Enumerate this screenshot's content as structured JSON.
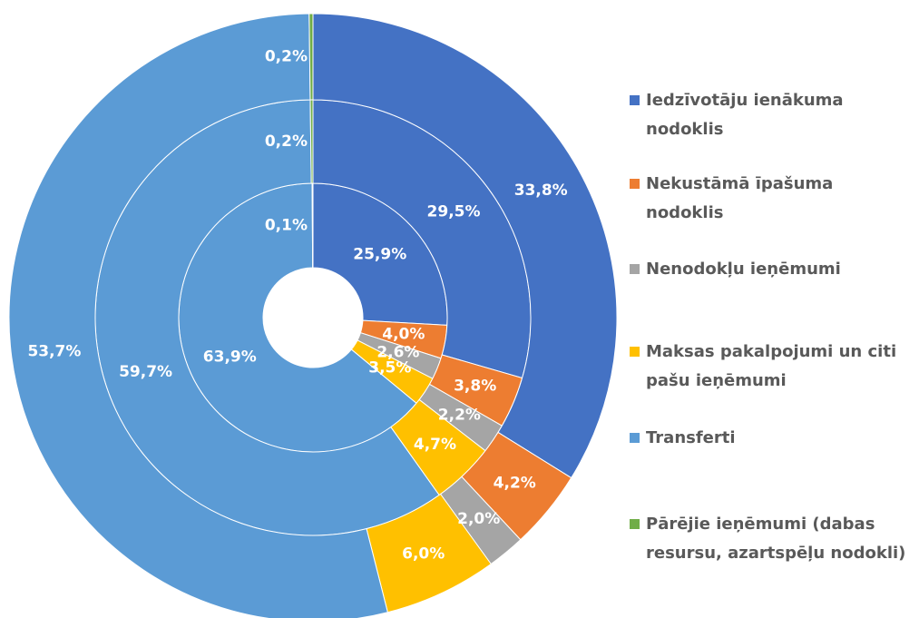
{
  "chart_data": {
    "type": "multi-ring-donut",
    "categories": [
      "Iedzīvotāju ienākuma nodoklis",
      "Nekustāmā īpašuma nodoklis",
      "Nenodokļu ieņēmumi",
      "Maksas pakalpojumi un citi pašu ieņēmumi",
      "Transferti",
      "Pārējie ieņēmumi (dabas resursu, azartspēļu nodokli)"
    ],
    "colors": [
      "#4472c4",
      "#ed7d31",
      "#a5a5a5",
      "#ffc000",
      "#5b9bd5",
      "#70ad47"
    ],
    "rings": [
      {
        "values": [
          25.9,
          4.0,
          2.6,
          3.5,
          63.9,
          0.1
        ],
        "value_labels": [
          "25,9%",
          "4,0%",
          "2,6%",
          "3,5%",
          "63,9%",
          "0,1%"
        ]
      },
      {
        "values": [
          29.5,
          3.8,
          2.2,
          4.7,
          59.7,
          0.2
        ],
        "value_labels": [
          "29,5%",
          "3,8%",
          "2,2%",
          "4,7%",
          "59,7%",
          "0,2%"
        ]
      },
      {
        "values": [
          33.8,
          4.2,
          2.0,
          6.0,
          53.7,
          0.2
        ],
        "value_labels": [
          "33,8%",
          "4,2%",
          "2,0%",
          "6,0%",
          "53,7%",
          "0,2%"
        ]
      }
    ],
    "legend": "right"
  }
}
